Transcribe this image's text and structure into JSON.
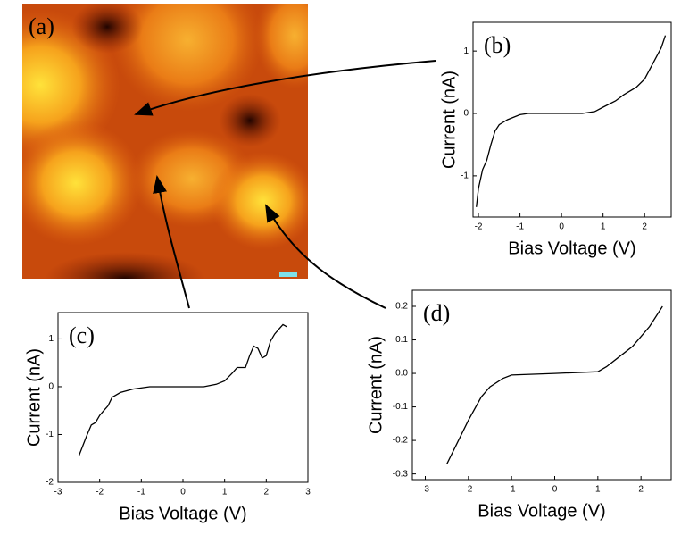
{
  "image": {
    "label": "(a)"
  },
  "chart_data": [
    {
      "type": "line",
      "title": "(b)",
      "xlabel": "Bias Voltage (V)",
      "ylabel": "Current (nA)",
      "x": [
        -2.05,
        -2.0,
        -1.9,
        -1.8,
        -1.7,
        -1.6,
        -1.5,
        -1.3,
        -1.0,
        -0.8,
        0,
        0.5,
        0.8,
        1.0,
        1.3,
        1.5,
        1.8,
        2.0,
        2.2,
        2.4,
        2.5
      ],
      "values": [
        -1.5,
        -1.2,
        -0.9,
        -0.75,
        -0.5,
        -0.28,
        -0.18,
        -0.1,
        -0.02,
        0,
        0,
        0,
        0.03,
        0.1,
        0.2,
        0.3,
        0.42,
        0.55,
        0.8,
        1.05,
        1.25
      ],
      "color": "#000000",
      "xlim": [
        -2.13,
        2.64
      ],
      "ylim": [
        -1.66,
        1.46
      ],
      "xticks": [
        -2,
        -1,
        0,
        1,
        2
      ],
      "yticks": [
        -1,
        0,
        1
      ]
    },
    {
      "type": "line",
      "title": "(c)",
      "xlabel": "Bias Voltage (V)",
      "ylabel": "Current (nA)",
      "x": [
        -2.5,
        -2.3,
        -2.2,
        -2.1,
        -2.0,
        -1.9,
        -1.8,
        -1.7,
        -1.5,
        -1.2,
        -0.8,
        0.5,
        0.8,
        1.0,
        1.2,
        1.3,
        1.5,
        1.6,
        1.7,
        1.8,
        1.9,
        2.0,
        2.1,
        2.2,
        2.3,
        2.4,
        2.5
      ],
      "values": [
        -1.45,
        -1.0,
        -0.8,
        -0.75,
        -0.6,
        -0.5,
        -0.4,
        -0.22,
        -0.12,
        -0.05,
        0,
        0,
        0.05,
        0.12,
        0.3,
        0.4,
        0.4,
        0.65,
        0.85,
        0.8,
        0.6,
        0.65,
        0.95,
        1.1,
        1.2,
        1.3,
        1.25
      ],
      "color": "#000000",
      "xlim": [
        -3,
        3
      ],
      "ylim": [
        -2,
        1.55
      ],
      "xticks": [
        -3,
        -2,
        -1,
        0,
        1,
        2,
        3
      ],
      "yticks": [
        -2,
        -1,
        0,
        1
      ]
    },
    {
      "type": "line",
      "title": "(d)",
      "xlabel": "Bias Voltage (V)",
      "ylabel": "Current (nA)",
      "x": [
        -2.5,
        -2.0,
        -1.7,
        -1.5,
        -1.2,
        -1.0,
        0,
        1.0,
        1.2,
        1.5,
        1.8,
        2.0,
        2.2,
        2.5
      ],
      "values": [
        -0.27,
        -0.14,
        -0.07,
        -0.04,
        -0.015,
        -0.005,
        0,
        0.005,
        0.02,
        0.05,
        0.08,
        0.11,
        0.14,
        0.2
      ],
      "color": "#000000",
      "xlim": [
        -3.3,
        2.7
      ],
      "ylim": [
        -0.317,
        0.248
      ],
      "xticks": [
        -3,
        -2,
        -1,
        0,
        1,
        2
      ],
      "yticks": [
        -0.3,
        -0.2,
        -0.1,
        {
          "value": 0,
          "label": "0.0"
        },
        0.1,
        0.2
      ]
    }
  ]
}
